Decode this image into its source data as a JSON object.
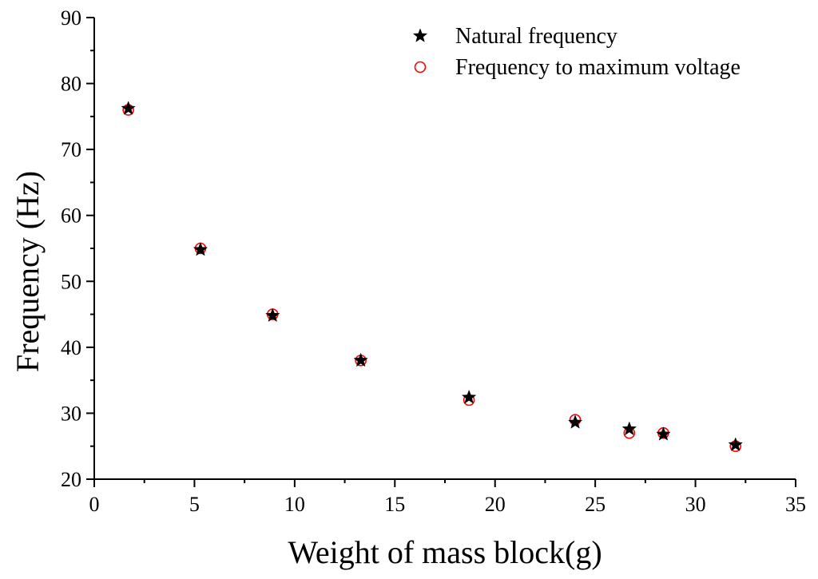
{
  "chart_data": {
    "type": "scatter",
    "title": "",
    "xlabel": "Weight of mass block(g)",
    "ylabel": "Frequency (Hz)",
    "xlim": [
      0,
      35
    ],
    "ylim": [
      20,
      90
    ],
    "xticks": [
      0,
      5,
      10,
      15,
      20,
      25,
      30,
      35
    ],
    "yticks": [
      20,
      30,
      40,
      50,
      60,
      70,
      80,
      90
    ],
    "xtick_labels": [
      "0",
      "5",
      "10",
      "15",
      "20",
      "25",
      "30",
      "35"
    ],
    "ytick_labels": [
      "20",
      "30",
      "40",
      "50",
      "60",
      "70",
      "80",
      "90"
    ],
    "grid": false,
    "legend_position": "top-right",
    "series": [
      {
        "name": "Natural frequency",
        "marker": "star",
        "color": "#000000",
        "x": [
          1.7,
          5.3,
          8.9,
          13.3,
          18.7,
          24.0,
          26.7,
          28.4,
          32.0
        ],
        "y": [
          76.2,
          54.8,
          44.8,
          38.0,
          32.4,
          28.6,
          27.6,
          26.8,
          25.2
        ]
      },
      {
        "name": "Frequency to maximum voltage",
        "marker": "circle-open",
        "color": "#ff0000",
        "x": [
          1.7,
          5.3,
          8.9,
          13.3,
          18.7,
          24.0,
          26.7,
          28.4,
          32.0
        ],
        "y": [
          76.0,
          55.0,
          45.0,
          38.0,
          32.0,
          29.0,
          27.0,
          27.0,
          25.0
        ]
      }
    ]
  }
}
